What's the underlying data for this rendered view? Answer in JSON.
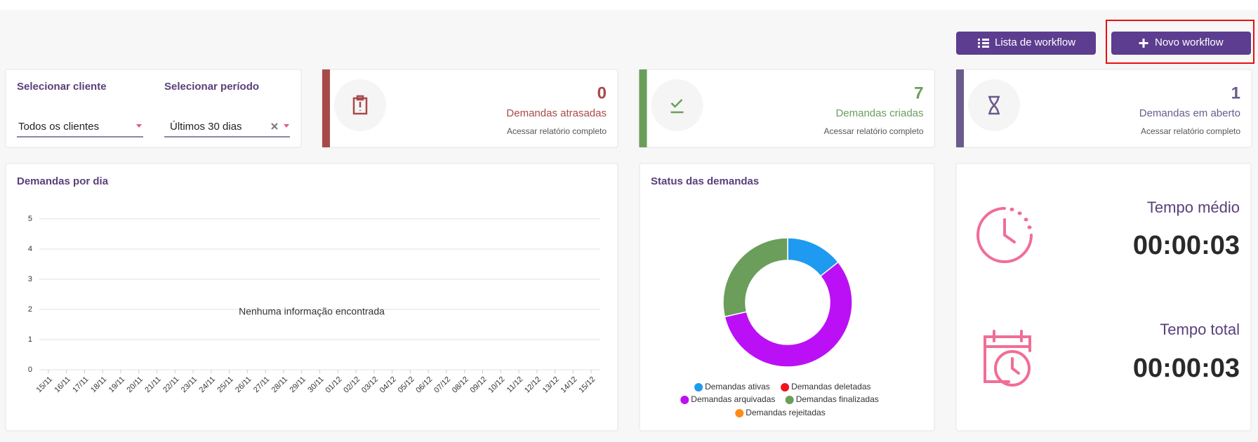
{
  "header": {
    "buttons": [
      "Lista de workflow",
      "Novo workflow"
    ]
  },
  "filters": [
    {
      "label": "Selecionar cliente",
      "value": "Todos os clientes"
    },
    {
      "label": "Selecionar período",
      "value": "Últimos 30 dias"
    }
  ],
  "stats": [
    {
      "value": 0,
      "label": "Demandas atrasadas",
      "link": "Acessar relatório completo",
      "color": "#a84a4a"
    },
    {
      "value": 7,
      "label": "Demandas criadas",
      "link": "Acessar relatório completo",
      "color": "#6a9e5a"
    },
    {
      "value": 1,
      "label": "Demandas em aberto",
      "link": "Acessar relatório completo",
      "color": "#6b5b8c"
    }
  ],
  "chart_data": [
    {
      "type": "line",
      "title": "Demandas por dia",
      "message": "Nenhuma informação encontrada",
      "categories": [
        "15/11",
        "16/11",
        "17/11",
        "18/11",
        "19/11",
        "20/11",
        "21/11",
        "22/11",
        "23/11",
        "24/11",
        "25/11",
        "26/11",
        "27/11",
        "28/11",
        "29/11",
        "30/11",
        "01/12",
        "02/12",
        "03/12",
        "04/12",
        "05/12",
        "06/12",
        "07/12",
        "08/12",
        "09/12",
        "10/12",
        "11/12",
        "12/12",
        "13/12",
        "14/12",
        "15/12"
      ],
      "ylim": [
        0,
        5
      ],
      "yticks": [
        0,
        1,
        2,
        3,
        4,
        5
      ],
      "grid": true
    },
    {
      "type": "donut",
      "title": "Status das demandas",
      "categories": [
        "Demandas ativas",
        "Demandas deletadas",
        "Demandas arquivadas",
        "Demandas finalizadas",
        "Demandas rejeitadas"
      ],
      "values": [
        1,
        0,
        4,
        2,
        0
      ],
      "colors": [
        "#1e9bf0",
        "#f0131e",
        "#bb10f5",
        "#6a9e5a",
        "#ff8a1a"
      ]
    }
  ],
  "times": [
    {
      "label": "Tempo médio",
      "value": "00:00:03"
    },
    {
      "label": "Tempo total",
      "value": "00:00:03"
    }
  ]
}
